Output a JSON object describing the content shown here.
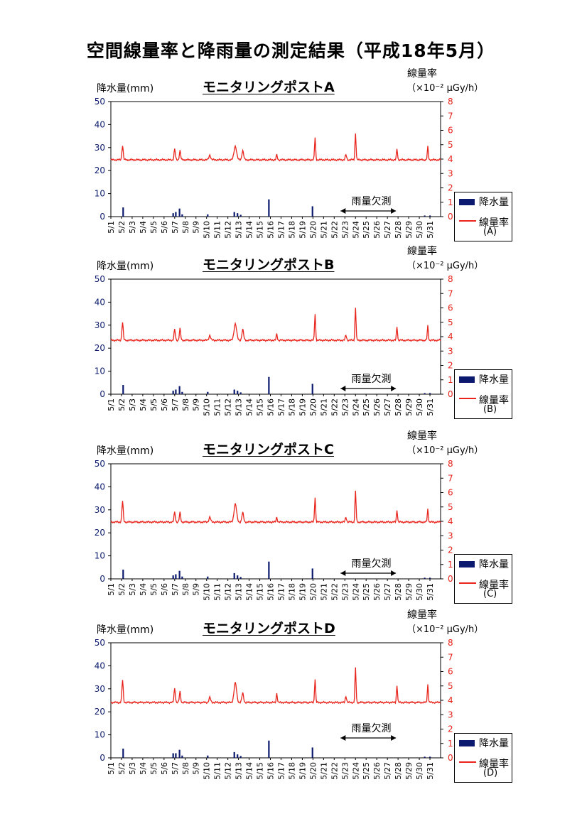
{
  "page_title": "空間線量率と降雨量の測定結果（平成18年5月）",
  "colors": {
    "rain": "#0b1a6e",
    "rate": "#e8241c"
  },
  "chart_data": [
    {
      "type": "bar+line",
      "title": "モニタリングポストA",
      "ylabel_left": "降水量(mm)",
      "ylabel_right": "線量率",
      "ylabel_right_unit": "（×10⁻² μGy/h）",
      "ylim_left": [
        0,
        50
      ],
      "ylim_right": [
        0,
        8
      ],
      "yticks_left": [
        "0",
        "10",
        "20",
        "30",
        "40",
        "50"
      ],
      "yticks_right": [
        "0",
        "1",
        "2",
        "3",
        "4",
        "5",
        "6",
        "7",
        "8"
      ],
      "categories": [
        "5/1",
        "5/2",
        "5/3",
        "5/4",
        "5/5",
        "5/6",
        "5/7",
        "5/8",
        "5/9",
        "5/10",
        "5/11",
        "5/12",
        "5/13",
        "5/14",
        "5/15",
        "5/16",
        "5/17",
        "5/18",
        "5/19",
        "5/20",
        "5/21",
        "5/22",
        "5/23",
        "5/24",
        "5/25",
        "5/26",
        "5/27",
        "5/28",
        "5/29",
        "5/30",
        "5/31"
      ],
      "annotation": "雨量欠測",
      "legend": {
        "rain": "降水量",
        "rate": "線量率",
        "tag": "(A)"
      },
      "rate_baseline": 3.95,
      "rate_peaks": [
        [
          2.1,
          4.95,
          0.06
        ],
        [
          7.0,
          4.7,
          0.06
        ],
        [
          7.5,
          4.6,
          0.06
        ],
        [
          10.3,
          4.3,
          0.08
        ],
        [
          12.7,
          4.9,
          0.12
        ],
        [
          13.4,
          4.6,
          0.08
        ],
        [
          16.6,
          4.3,
          0.05
        ],
        [
          20.2,
          5.5,
          0.05
        ],
        [
          23.1,
          4.3,
          0.06
        ],
        [
          24.0,
          5.8,
          0.05
        ],
        [
          27.9,
          4.7,
          0.05
        ],
        [
          30.8,
          4.85,
          0.05
        ]
      ],
      "rain_bars": [
        [
          2.15,
          4
        ],
        [
          6.85,
          1.5
        ],
        [
          7.1,
          2
        ],
        [
          7.45,
          3.5
        ],
        [
          7.7,
          1
        ],
        [
          10.1,
          1
        ],
        [
          12.6,
          2
        ],
        [
          12.9,
          1.5
        ],
        [
          13.2,
          0.8
        ],
        [
          15.85,
          7.5
        ],
        [
          19.95,
          4.5
        ],
        [
          30.5,
          0.5
        ],
        [
          31.0,
          0.5
        ]
      ]
    },
    {
      "type": "bar+line",
      "title": "モニタリングポストB",
      "ylabel_left": "降水量(mm)",
      "ylabel_right": "線量率",
      "ylabel_right_unit": "（×10⁻² μGy/h）",
      "ylim_left": [
        0,
        50
      ],
      "ylim_right": [
        0,
        8
      ],
      "yticks_left": [
        "0",
        "10",
        "20",
        "30",
        "40",
        "50"
      ],
      "yticks_right": [
        "0",
        "1",
        "2",
        "3",
        "4",
        "5",
        "6",
        "7",
        "8"
      ],
      "categories": [
        "5/1",
        "5/2",
        "5/3",
        "5/4",
        "5/5",
        "5/6",
        "5/7",
        "5/8",
        "5/9",
        "5/10",
        "5/11",
        "5/12",
        "5/13",
        "5/14",
        "5/15",
        "5/16",
        "5/17",
        "5/18",
        "5/19",
        "5/20",
        "5/21",
        "5/22",
        "5/23",
        "5/24",
        "5/25",
        "5/26",
        "5/27",
        "5/28",
        "5/29",
        "5/30",
        "5/31"
      ],
      "annotation": "雨量欠測",
      "legend": {
        "rain": "降水量",
        "rate": "線量率",
        "tag": "(B)"
      },
      "rate_baseline": 3.75,
      "rate_peaks": [
        [
          2.1,
          5.0,
          0.06
        ],
        [
          7.0,
          4.5,
          0.06
        ],
        [
          7.5,
          4.55,
          0.06
        ],
        [
          10.3,
          4.1,
          0.08
        ],
        [
          12.7,
          4.9,
          0.12
        ],
        [
          13.4,
          4.5,
          0.08
        ],
        [
          16.6,
          4.2,
          0.05
        ],
        [
          20.2,
          5.6,
          0.05
        ],
        [
          23.1,
          4.1,
          0.06
        ],
        [
          24.0,
          6.0,
          0.05
        ],
        [
          27.9,
          4.7,
          0.05
        ],
        [
          30.8,
          4.75,
          0.05
        ]
      ],
      "rain_bars": [
        [
          2.15,
          4
        ],
        [
          6.85,
          1.5
        ],
        [
          7.1,
          2
        ],
        [
          7.45,
          3.5
        ],
        [
          7.7,
          1
        ],
        [
          10.1,
          1
        ],
        [
          12.6,
          2
        ],
        [
          12.9,
          1.5
        ],
        [
          13.2,
          0.8
        ],
        [
          15.85,
          7.5
        ],
        [
          19.95,
          4.5
        ],
        [
          30.5,
          0.5
        ],
        [
          31.0,
          0.5
        ]
      ]
    },
    {
      "type": "bar+line",
      "title": "モニタリングポストC",
      "ylabel_left": "降水量(mm)",
      "ylabel_right": "線量率",
      "ylabel_right_unit": "（×10⁻² μGy/h）",
      "ylim_left": [
        0,
        50
      ],
      "ylim_right": [
        0,
        8
      ],
      "yticks_left": [
        "0",
        "10",
        "20",
        "30",
        "40",
        "50"
      ],
      "yticks_right": [
        "0",
        "1",
        "2",
        "3",
        "4",
        "5",
        "6",
        "7",
        "8"
      ],
      "categories": [
        "5/1",
        "5/2",
        "5/3",
        "5/4",
        "5/5",
        "5/6",
        "5/7",
        "5/8",
        "5/9",
        "5/10",
        "5/11",
        "5/12",
        "5/13",
        "5/14",
        "5/15",
        "5/16",
        "5/17",
        "5/18",
        "5/19",
        "5/20",
        "5/21",
        "5/22",
        "5/23",
        "5/24",
        "5/25",
        "5/26",
        "5/27",
        "5/28",
        "5/29",
        "5/30",
        "5/31"
      ],
      "annotation": "雨量欠測",
      "legend": {
        "rain": "降水量",
        "rate": "線量率",
        "tag": "(C)"
      },
      "rate_baseline": 3.95,
      "rate_peaks": [
        [
          2.1,
          5.4,
          0.06
        ],
        [
          7.0,
          4.65,
          0.06
        ],
        [
          7.5,
          4.6,
          0.06
        ],
        [
          10.3,
          4.3,
          0.08
        ],
        [
          12.7,
          5.2,
          0.12
        ],
        [
          13.4,
          4.6,
          0.08
        ],
        [
          16.6,
          4.3,
          0.05
        ],
        [
          20.2,
          5.7,
          0.05
        ],
        [
          23.1,
          4.3,
          0.06
        ],
        [
          24.0,
          6.1,
          0.05
        ],
        [
          27.9,
          4.8,
          0.05
        ],
        [
          30.8,
          4.85,
          0.05
        ]
      ],
      "rain_bars": [
        [
          2.15,
          4
        ],
        [
          6.85,
          1.5
        ],
        [
          7.1,
          2
        ],
        [
          7.45,
          3.5
        ],
        [
          7.7,
          1
        ],
        [
          10.1,
          1
        ],
        [
          12.6,
          2.5
        ],
        [
          12.9,
          1.5
        ],
        [
          13.2,
          0.8
        ],
        [
          15.85,
          7.5
        ],
        [
          19.95,
          4.5
        ],
        [
          30.5,
          0.5
        ],
        [
          31.0,
          0.5
        ]
      ]
    },
    {
      "type": "bar+line",
      "title": "モニタリングポストD",
      "ylabel_left": "降水量(mm)",
      "ylabel_right": "線量率",
      "ylabel_right_unit": "（×10⁻² μGy/h）",
      "ylim_left": [
        0,
        50
      ],
      "ylim_right": [
        0,
        8
      ],
      "yticks_left": [
        "0",
        "10",
        "20",
        "30",
        "40",
        "50"
      ],
      "yticks_right": [
        "0",
        "1",
        "2",
        "3",
        "4",
        "5",
        "6",
        "7",
        "8"
      ],
      "categories": [
        "5/1",
        "5/2",
        "5/3",
        "5/4",
        "5/5",
        "5/6",
        "5/7",
        "5/8",
        "5/9",
        "5/10",
        "5/11",
        "5/12",
        "5/13",
        "5/14",
        "5/15",
        "5/16",
        "5/17",
        "5/18",
        "5/19",
        "5/20",
        "5/21",
        "5/22",
        "5/23",
        "5/24",
        "5/25",
        "5/26",
        "5/27",
        "5/28",
        "5/29",
        "5/30",
        "5/31"
      ],
      "annotation": "雨量欠測",
      "legend": {
        "rain": "降水量",
        "rate": "線量率",
        "tag": "(D)"
      },
      "rate_baseline": 3.85,
      "rate_peaks": [
        [
          2.1,
          5.4,
          0.06
        ],
        [
          7.0,
          4.85,
          0.06
        ],
        [
          7.5,
          4.6,
          0.06
        ],
        [
          10.3,
          4.2,
          0.08
        ],
        [
          12.7,
          5.2,
          0.12
        ],
        [
          13.4,
          4.5,
          0.08
        ],
        [
          16.6,
          4.5,
          0.05
        ],
        [
          20.2,
          5.5,
          0.05
        ],
        [
          23.1,
          4.3,
          0.06
        ],
        [
          24.0,
          6.25,
          0.05
        ],
        [
          27.9,
          5.05,
          0.05
        ],
        [
          30.8,
          5.1,
          0.05
        ]
      ],
      "rain_bars": [
        [
          2.15,
          4
        ],
        [
          6.85,
          2
        ],
        [
          7.1,
          2
        ],
        [
          7.45,
          3.5
        ],
        [
          7.7,
          1
        ],
        [
          10.1,
          1
        ],
        [
          12.6,
          2.5
        ],
        [
          12.9,
          1.5
        ],
        [
          13.2,
          0.8
        ],
        [
          15.85,
          7.5
        ],
        [
          19.95,
          4.5
        ],
        [
          30.5,
          0.5
        ],
        [
          31.0,
          0.5
        ]
      ]
    }
  ]
}
